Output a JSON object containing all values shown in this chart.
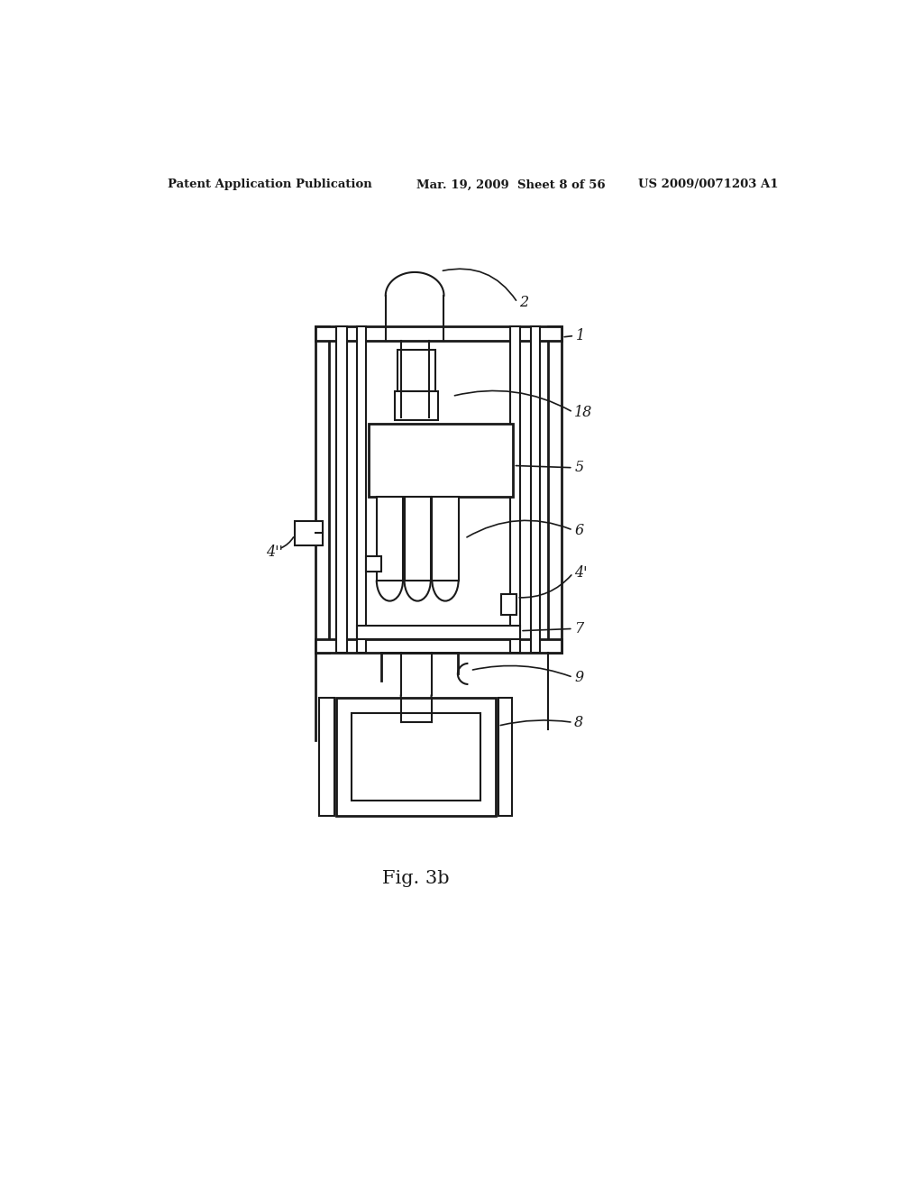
{
  "bg_color": "#ffffff",
  "line_color": "#1a1a1a",
  "header_left": "Patent Application Publication",
  "header_mid": "Mar. 19, 2009  Sheet 8 of 56",
  "header_right": "US 2009/0071203 A1",
  "fig_label": "Fig. 3b"
}
